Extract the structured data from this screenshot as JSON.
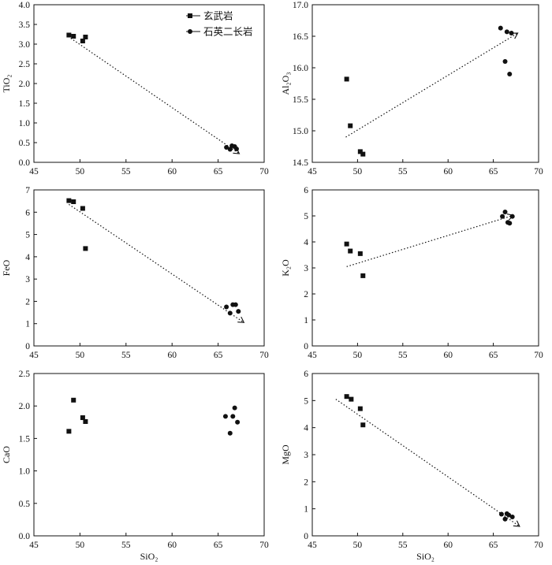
{
  "chart_data": [
    {
      "type": "scatter",
      "title": "",
      "xlabel": "",
      "ylabel": "TiO₂",
      "xlim": [
        45,
        70
      ],
      "ylim": [
        0,
        4
      ],
      "xticks": [
        "45",
        "50",
        "55",
        "60",
        "65",
        "70"
      ],
      "yticks": [
        "0.0",
        "0.5",
        "1.0",
        "1.5",
        "2.0",
        "2.5",
        "3.0",
        "3.5",
        "4.0"
      ],
      "legend": {
        "position": "top-center",
        "entries": [
          {
            "name": "玄武岩",
            "marker": "square"
          },
          {
            "name": "石英二长岩",
            "marker": "circle"
          }
        ]
      },
      "series": [
        {
          "name": "玄武岩",
          "marker": "square",
          "points": [
            [
              48.8,
              3.23
            ],
            [
              49.3,
              3.2
            ],
            [
              50.3,
              3.08
            ],
            [
              50.6,
              3.18
            ]
          ]
        },
        {
          "name": "石英二长岩",
          "marker": "circle",
          "points": [
            [
              65.9,
              0.38
            ],
            [
              66.3,
              0.33
            ],
            [
              66.5,
              0.42
            ],
            [
              66.8,
              0.4
            ],
            [
              67.0,
              0.34
            ]
          ]
        }
      ],
      "trend": {
        "from": [
          49.0,
          3.15
        ],
        "to": [
          67.3,
          0.22
        ],
        "style": "dotted-arrow"
      }
    },
    {
      "type": "scatter",
      "title": "",
      "xlabel": "",
      "ylabel": "Al₂O₃",
      "xlim": [
        45,
        70
      ],
      "ylim": [
        14.5,
        17.0
      ],
      "xticks": [
        "45",
        "50",
        "55",
        "60",
        "65",
        "70"
      ],
      "yticks": [
        "14.5",
        "15.0",
        "15.5",
        "16.0",
        "16.5",
        "17.0"
      ],
      "series": [
        {
          "name": "玄武岩",
          "marker": "square",
          "points": [
            [
              48.8,
              15.82
            ],
            [
              49.2,
              15.08
            ],
            [
              50.3,
              14.67
            ],
            [
              50.6,
              14.63
            ]
          ]
        },
        {
          "name": "石英二长岩",
          "marker": "circle",
          "points": [
            [
              65.8,
              16.63
            ],
            [
              66.3,
              16.1
            ],
            [
              66.5,
              16.57
            ],
            [
              66.8,
              15.9
            ],
            [
              67.0,
              16.55
            ]
          ]
        }
      ],
      "trend": {
        "from": [
          48.7,
          14.9
        ],
        "to": [
          67.7,
          16.55
        ],
        "style": "dotted-arrow"
      }
    },
    {
      "type": "scatter",
      "title": "",
      "xlabel": "",
      "ylabel": "FeO",
      "xlim": [
        45,
        70
      ],
      "ylim": [
        0,
        7
      ],
      "xticks": [
        "45",
        "50",
        "55",
        "60",
        "65",
        "70"
      ],
      "yticks": [
        "0",
        "1",
        "2",
        "3",
        "4",
        "5",
        "6",
        "7"
      ],
      "series": [
        {
          "name": "玄武岩",
          "marker": "square",
          "points": [
            [
              48.8,
              6.52
            ],
            [
              49.3,
              6.47
            ],
            [
              50.3,
              6.17
            ],
            [
              50.6,
              4.37
            ]
          ]
        },
        {
          "name": "石英二长岩",
          "marker": "circle",
          "points": [
            [
              65.9,
              1.75
            ],
            [
              66.3,
              1.47
            ],
            [
              66.6,
              1.85
            ],
            [
              66.9,
              1.85
            ],
            [
              67.2,
              1.55
            ]
          ]
        }
      ],
      "trend": {
        "from": [
          48.8,
          6.35
        ],
        "to": [
          67.8,
          1.05
        ],
        "style": "dotted-arrow"
      }
    },
    {
      "type": "scatter",
      "title": "",
      "xlabel": "",
      "ylabel": "K₂O",
      "xlim": [
        45,
        70
      ],
      "ylim": [
        0,
        6
      ],
      "xticks": [
        "45",
        "50",
        "55",
        "60",
        "65",
        "70"
      ],
      "yticks": [
        "0",
        "1",
        "2",
        "3",
        "4",
        "5",
        "6"
      ],
      "series": [
        {
          "name": "玄武岩",
          "marker": "square",
          "points": [
            [
              48.8,
              3.92
            ],
            [
              49.2,
              3.65
            ],
            [
              50.3,
              3.55
            ],
            [
              50.6,
              2.7
            ]
          ]
        },
        {
          "name": "石英二长岩",
          "marker": "circle",
          "points": [
            [
              66.0,
              4.98
            ],
            [
              66.3,
              5.15
            ],
            [
              66.6,
              4.75
            ],
            [
              66.8,
              4.72
            ],
            [
              67.1,
              4.98
            ]
          ]
        }
      ],
      "trend": {
        "from": [
          48.8,
          3.05
        ],
        "to": [
          67.2,
          5.02
        ],
        "style": "dotted-arrow"
      }
    },
    {
      "type": "scatter",
      "title": "",
      "xlabel": "SiO₂",
      "ylabel": "CaO",
      "xlim": [
        45,
        70
      ],
      "ylim": [
        0,
        2.5
      ],
      "xticks": [
        "45",
        "50",
        "55",
        "60",
        "65",
        "70"
      ],
      "yticks": [
        "0.0",
        "0.5",
        "1.0",
        "1.5",
        "2.0",
        "2.5"
      ],
      "series": [
        {
          "name": "玄武岩",
          "marker": "square",
          "points": [
            [
              48.8,
              1.61
            ],
            [
              49.3,
              2.09
            ],
            [
              50.3,
              1.82
            ],
            [
              50.6,
              1.76
            ]
          ]
        },
        {
          "name": "石英二长岩",
          "marker": "circle",
          "points": [
            [
              65.8,
              1.84
            ],
            [
              66.3,
              1.58
            ],
            [
              66.6,
              1.84
            ],
            [
              66.8,
              1.97
            ],
            [
              67.1,
              1.75
            ]
          ]
        }
      ]
    },
    {
      "type": "scatter",
      "title": "",
      "xlabel": "SiO₂",
      "ylabel": "MgO",
      "xlim": [
        45,
        70
      ],
      "ylim": [
        0,
        6
      ],
      "xticks": [
        "45",
        "50",
        "55",
        "60",
        "65",
        "70"
      ],
      "yticks": [
        "0",
        "1",
        "2",
        "3",
        "4",
        "5",
        "6"
      ],
      "series": [
        {
          "name": "玄武岩",
          "marker": "square",
          "points": [
            [
              48.8,
              5.15
            ],
            [
              49.3,
              5.05
            ],
            [
              50.3,
              4.7
            ],
            [
              50.6,
              4.1
            ]
          ]
        },
        {
          "name": "石英二长岩",
          "marker": "circle",
          "points": [
            [
              65.9,
              0.8
            ],
            [
              66.3,
              0.62
            ],
            [
              66.5,
              0.82
            ],
            [
              66.7,
              0.77
            ],
            [
              67.1,
              0.7
            ]
          ]
        }
      ],
      "trend": {
        "from": [
          47.6,
          5.05
        ],
        "to": [
          67.9,
          0.35
        ],
        "style": "dotted-arrow"
      }
    }
  ]
}
